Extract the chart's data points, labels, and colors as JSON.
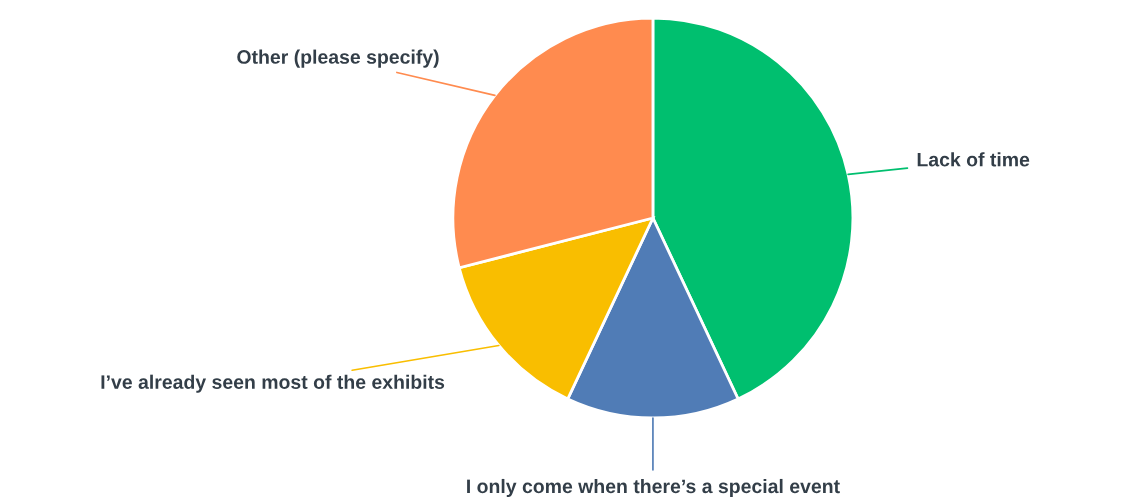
{
  "chart_data": {
    "type": "pie",
    "categories": [
      "Lack of time",
      "I only come when there’s a special event",
      "I’ve already seen most of the exhibits",
      "Other (please specify)"
    ],
    "values": [
      43,
      14,
      14,
      29
    ],
    "colors": [
      "#00bf6f",
      "#507cb6",
      "#f9be00",
      "#ff8b4f"
    ],
    "legend": false
  }
}
